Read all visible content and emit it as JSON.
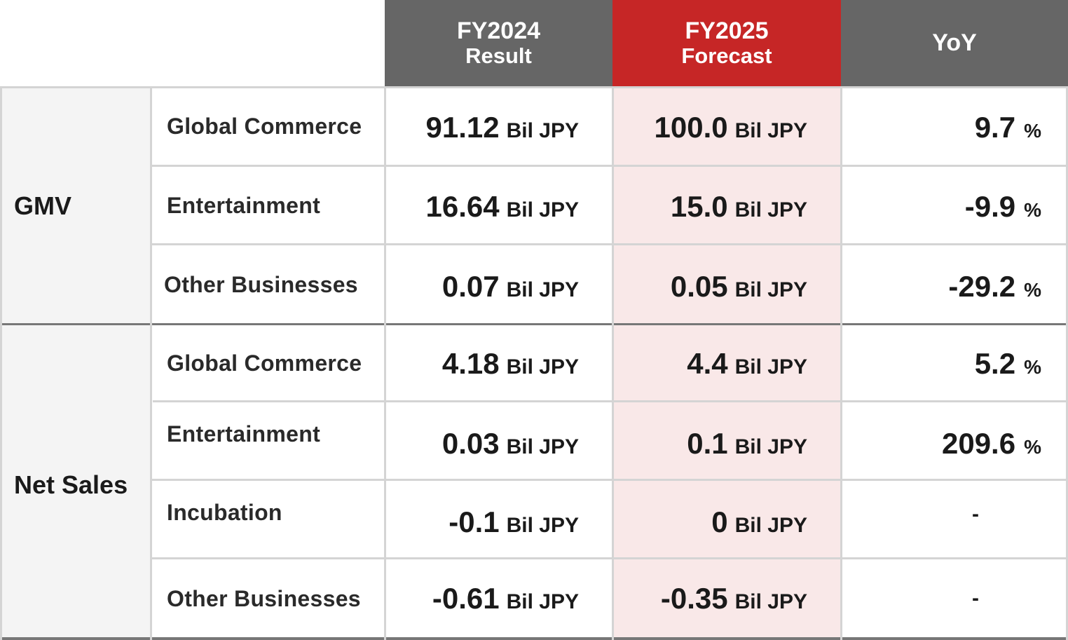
{
  "header": {
    "col1_line1": "FY2024",
    "col1_line2": "Result",
    "col2_line1": "FY2025",
    "col2_line2": "Forecast",
    "col3": "YoY"
  },
  "unit": "Bil JPY",
  "percent": "%",
  "groups": [
    {
      "label": "GMV",
      "rows": [
        {
          "segment": "Global Commerce",
          "fy2024": "91.12",
          "fy2025": "100.0",
          "yoy": "9.7",
          "yoy_unit": "%"
        },
        {
          "segment": "Entertainment",
          "fy2024": "16.64",
          "fy2025": "15.0",
          "yoy": "-9.9",
          "yoy_unit": "%"
        },
        {
          "segment": "Other Businesses",
          "fy2024": "0.07",
          "fy2025": "0.05",
          "yoy": "-29.2",
          "yoy_unit": "%"
        }
      ]
    },
    {
      "label": "Net Sales",
      "rows": [
        {
          "segment": "Global Commerce",
          "fy2024": "4.18",
          "fy2025": "4.4",
          "yoy": "5.2",
          "yoy_unit": "%"
        },
        {
          "segment": "Entertainment",
          "fy2024": "0.03",
          "fy2025": "0.1",
          "yoy": "209.6",
          "yoy_unit": "%"
        },
        {
          "segment": "Incubation",
          "fy2024": "-0.1",
          "fy2025": "0",
          "yoy": "-",
          "yoy_unit": ""
        },
        {
          "segment": "Other Businesses",
          "fy2024": "-0.61",
          "fy2025": "-0.35",
          "yoy": "-",
          "yoy_unit": ""
        }
      ]
    }
  ],
  "colors": {
    "header_gray": "#666666",
    "header_red": "#c62626",
    "forecast_bg": "#f9e8e8",
    "group_bg": "#f4f4f4"
  }
}
